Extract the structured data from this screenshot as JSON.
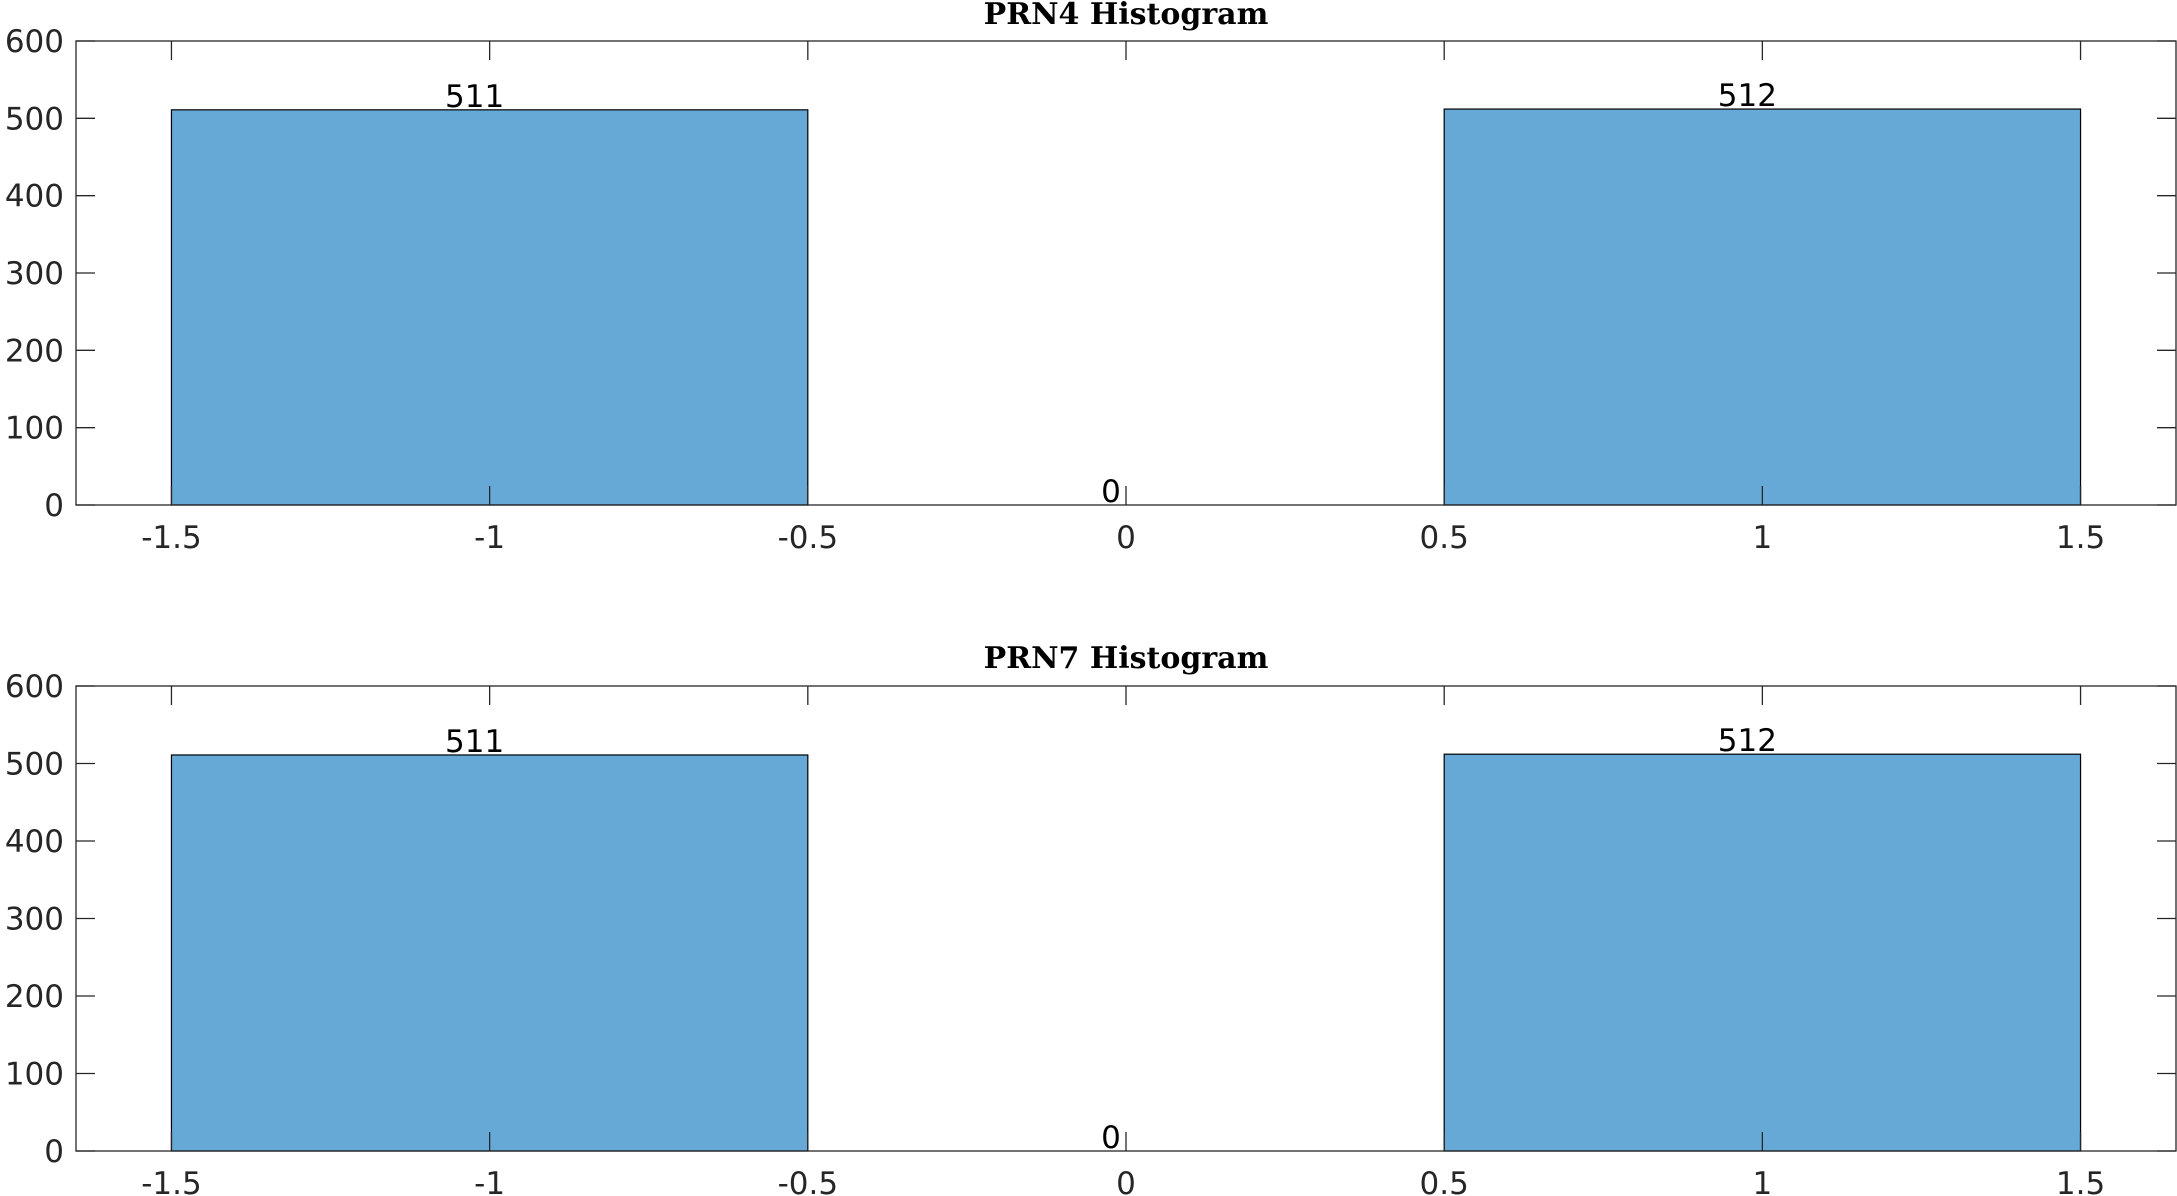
{
  "chart_data": [
    {
      "type": "bar",
      "title": "PRN4 Histogram",
      "xlabel": "",
      "ylabel": "",
      "xlim": [
        -1.65,
        1.65
      ],
      "ylim": [
        0,
        600
      ],
      "xticks": [
        -1.5,
        -1,
        -0.5,
        0,
        0.5,
        1,
        1.5
      ],
      "xtick_labels": [
        "-1.5",
        "-1",
        "-0.5",
        "0",
        "0.5",
        "1",
        "1.5"
      ],
      "yticks": [
        0,
        100,
        200,
        300,
        400,
        500,
        600
      ],
      "ytick_labels": [
        "0",
        "100",
        "200",
        "300",
        "400",
        "500",
        "600"
      ],
      "bin_edges": [
        -1.5,
        -0.5,
        0.5,
        1.5
      ],
      "bin_centers": [
        -1,
        0,
        1
      ],
      "values": [
        511,
        0,
        512
      ],
      "data_labels": [
        "511",
        "0",
        "512"
      ],
      "grid": false,
      "bar_color": "#66a9d6",
      "edge_color": "#000000"
    },
    {
      "type": "bar",
      "title": "PRN7 Histogram",
      "xlabel": "",
      "ylabel": "",
      "xlim": [
        -1.65,
        1.65
      ],
      "ylim": [
        0,
        600
      ],
      "xticks": [
        -1.5,
        -1,
        -0.5,
        0,
        0.5,
        1,
        1.5
      ],
      "xtick_labels": [
        "-1.5",
        "-1",
        "-0.5",
        "0",
        "0.5",
        "1",
        "1.5"
      ],
      "yticks": [
        0,
        100,
        200,
        300,
        400,
        500,
        600
      ],
      "ytick_labels": [
        "0",
        "100",
        "200",
        "300",
        "400",
        "500",
        "600"
      ],
      "bin_edges": [
        -1.5,
        -0.5,
        0.5,
        1.5
      ],
      "bin_centers": [
        -1,
        0,
        1
      ],
      "values": [
        511,
        0,
        512
      ],
      "data_labels": [
        "511",
        "0",
        "512"
      ],
      "grid": false,
      "bar_color": "#66a9d6",
      "edge_color": "#000000"
    }
  ]
}
